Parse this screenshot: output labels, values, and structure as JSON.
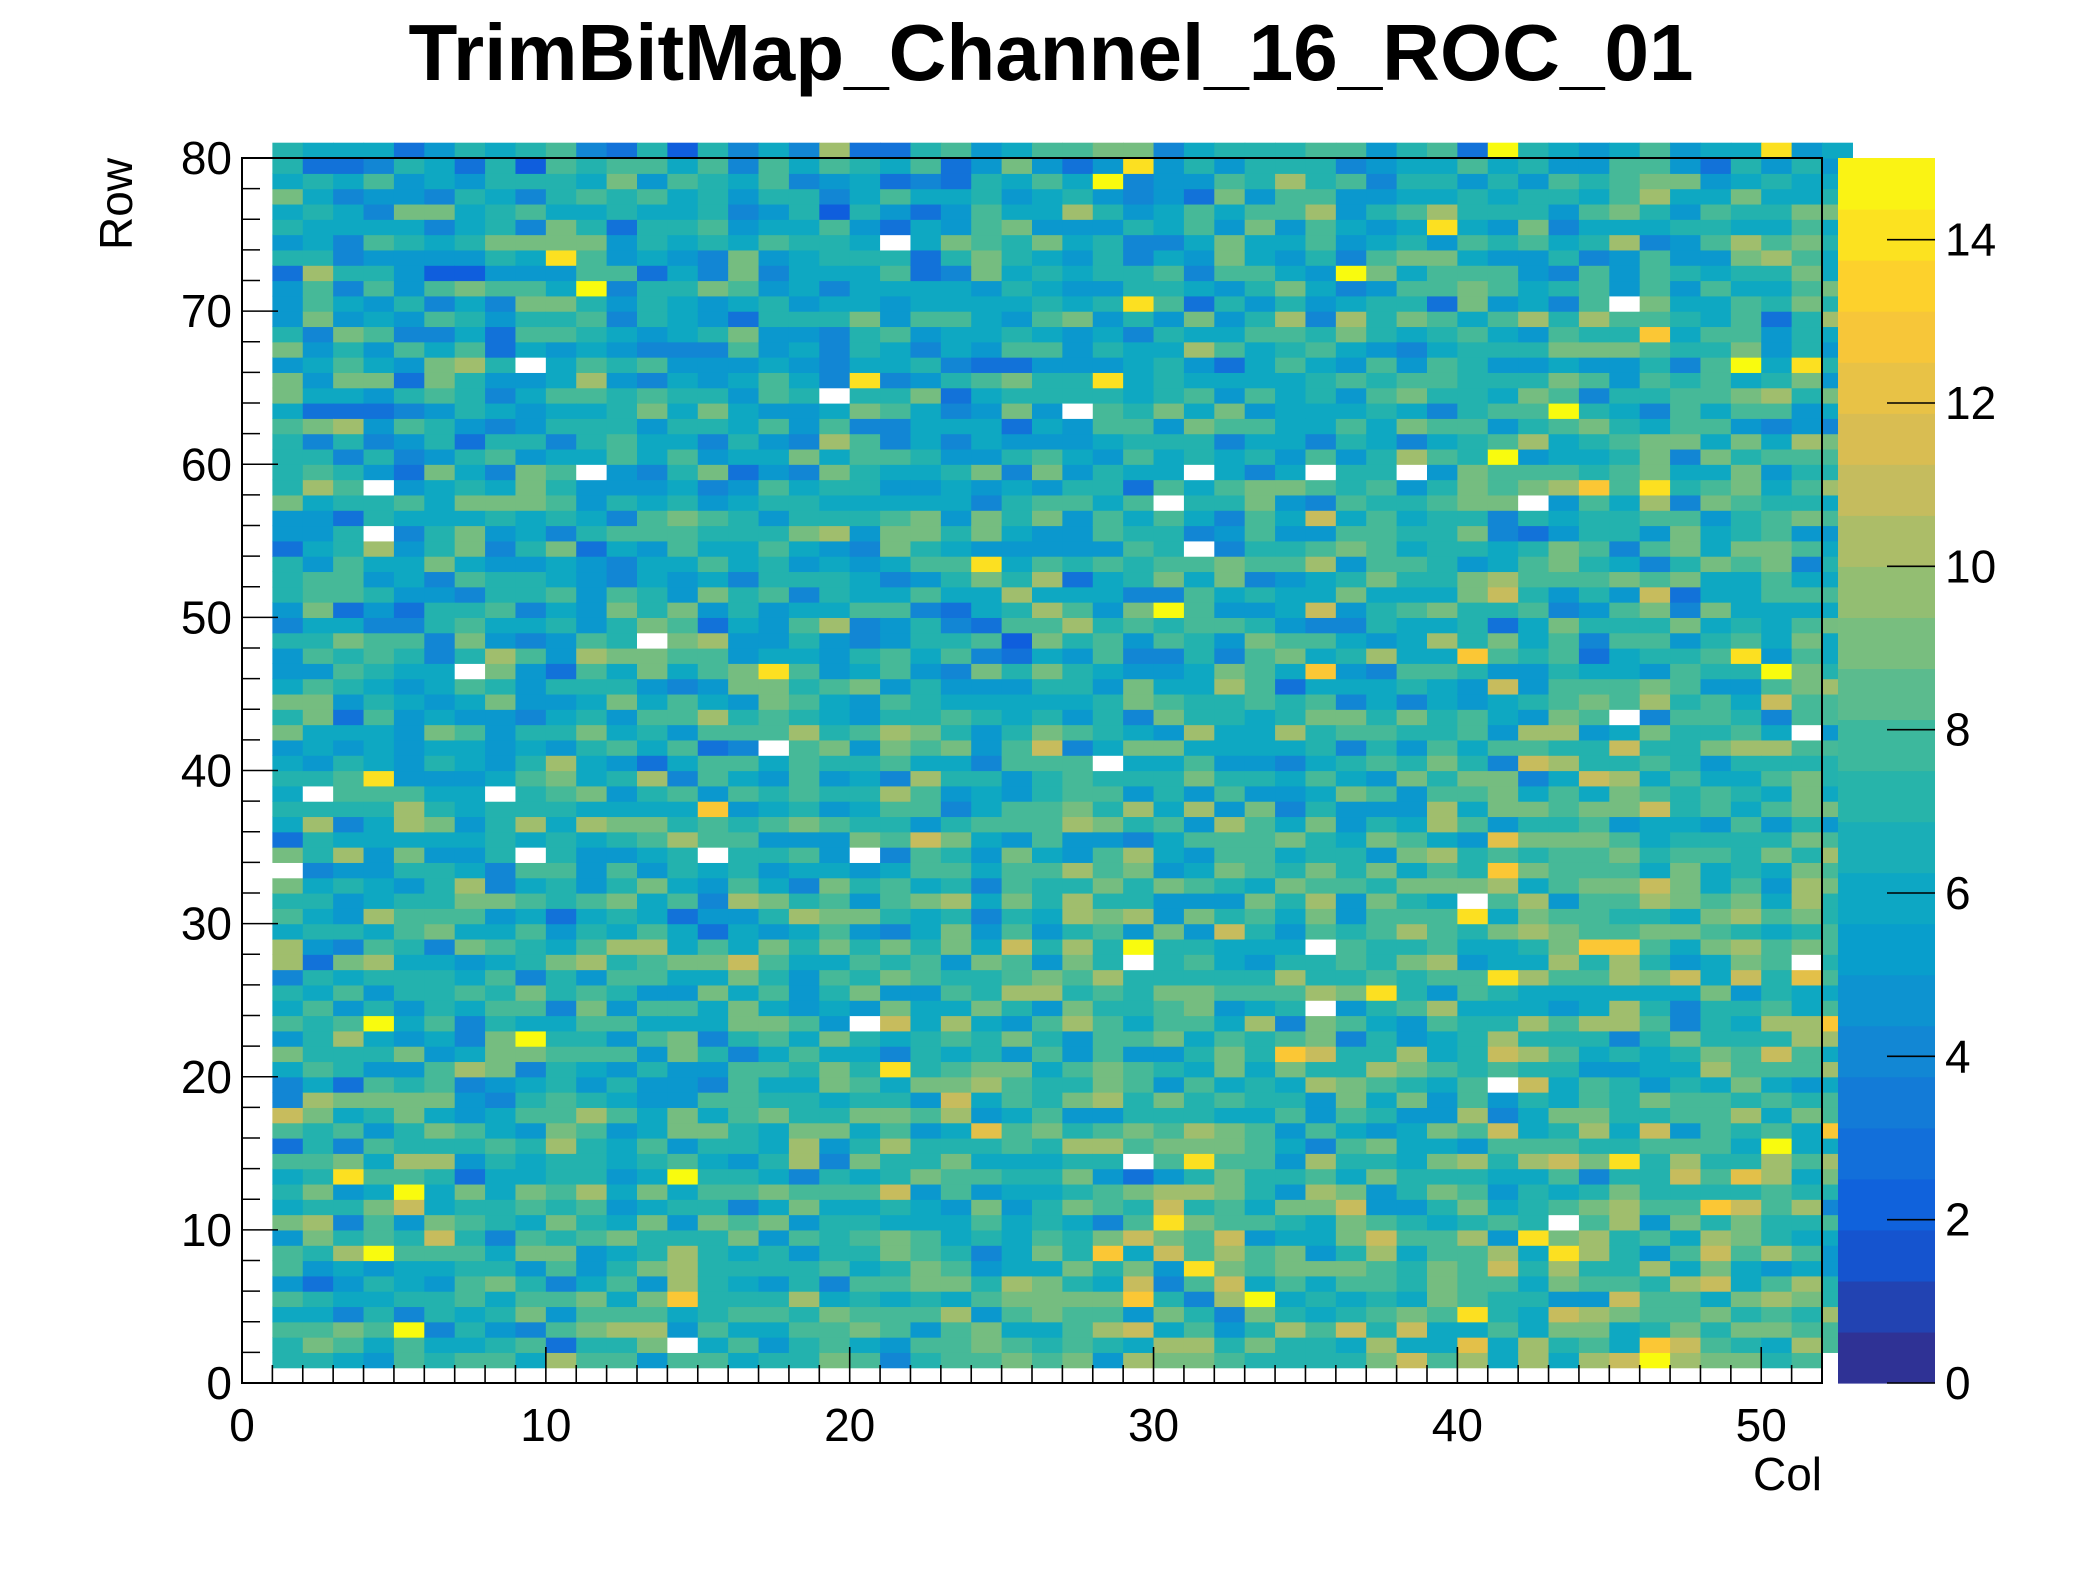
{
  "chart_data": {
    "type": "heatmap",
    "title": "TrimBitMap_Channel_16_ROC_01",
    "xlabel": "Col",
    "ylabel": "Row",
    "xlim": [
      0,
      52
    ],
    "ylim": [
      0,
      80
    ],
    "zlim": [
      0,
      15
    ],
    "x_ticks": [
      "0",
      "10",
      "20",
      "30",
      "40",
      "50"
    ],
    "y_ticks": [
      "0",
      "10",
      "20",
      "30",
      "40",
      "50",
      "60",
      "70",
      "80"
    ],
    "z_ticks": [
      "0",
      "2",
      "4",
      "6",
      "8",
      "10",
      "12",
      "14"
    ],
    "n_cols": 52,
    "n_rows": 80,
    "typical_value": 7,
    "palette": [
      "#352a87",
      "#0f5cdd",
      "#1481d6",
      "#06a4ca",
      "#2eb7a4",
      "#87bf77",
      "#d1bb59",
      "#fec832",
      "#f9fb0e"
    ],
    "zero_color": "#ffffff"
  }
}
